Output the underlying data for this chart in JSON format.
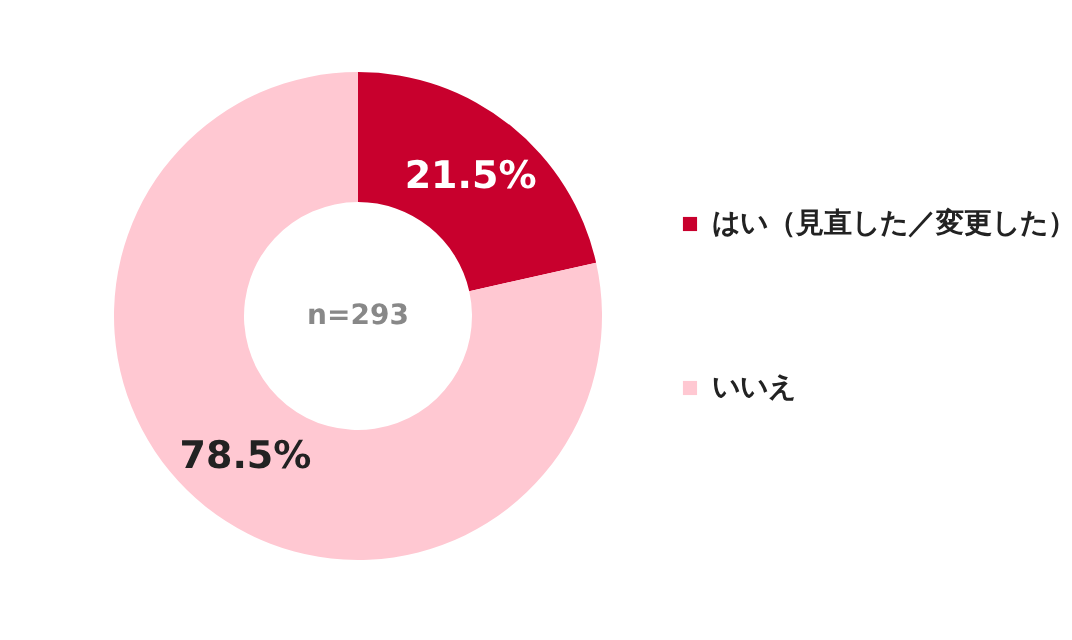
{
  "chart_data": {
    "type": "donut",
    "categories": [
      "はい（見直した／変更した）",
      "いいえ"
    ],
    "values": [
      21.5,
      78.5
    ],
    "colors": [
      "#c8002d",
      "#ffc8d2"
    ],
    "value_labels": [
      "21.5%",
      "78.5%"
    ],
    "annotations": [
      "n=293"
    ],
    "legend": "right"
  }
}
